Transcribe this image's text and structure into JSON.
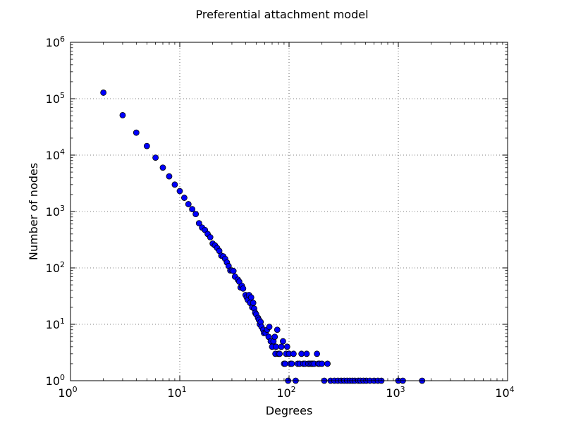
{
  "chart_data": {
    "type": "scatter",
    "title": "Preferential attachment model",
    "xlabel": "Degrees",
    "ylabel": "Number of nodes",
    "xscale": "log",
    "yscale": "log",
    "xlim": [
      1,
      10000
    ],
    "ylim": [
      1,
      1000000
    ],
    "grid": true,
    "marker_color": "#0000ff",
    "xticks": [
      {
        "value": 1,
        "base": "10",
        "exp": "0"
      },
      {
        "value": 10,
        "base": "10",
        "exp": "1"
      },
      {
        "value": 100,
        "base": "10",
        "exp": "2"
      },
      {
        "value": 1000,
        "base": "10",
        "exp": "3"
      },
      {
        "value": 10000,
        "base": "10",
        "exp": "4"
      }
    ],
    "yticks": [
      {
        "value": 1,
        "base": "10",
        "exp": "0"
      },
      {
        "value": 10,
        "base": "10",
        "exp": "1"
      },
      {
        "value": 100,
        "base": "10",
        "exp": "2"
      },
      {
        "value": 1000,
        "base": "10",
        "exp": "3"
      },
      {
        "value": 10000,
        "base": "10",
        "exp": "4"
      },
      {
        "value": 100000,
        "base": "10",
        "exp": "5"
      },
      {
        "value": 1000000,
        "base": "10",
        "exp": "6"
      }
    ],
    "points": [
      [
        2,
        128000
      ],
      [
        3,
        51000
      ],
      [
        4,
        25000
      ],
      [
        5,
        14500
      ],
      [
        6,
        9000
      ],
      [
        7,
        6000
      ],
      [
        8,
        4200
      ],
      [
        9,
        3000
      ],
      [
        10,
        2300
      ],
      [
        11,
        1750
      ],
      [
        12,
        1350
      ],
      [
        13,
        1100
      ],
      [
        14,
        900
      ],
      [
        15,
        620
      ],
      [
        16,
        520
      ],
      [
        17,
        470
      ],
      [
        18,
        400
      ],
      [
        19,
        350
      ],
      [
        20,
        270
      ],
      [
        21,
        250
      ],
      [
        22,
        225
      ],
      [
        23,
        200
      ],
      [
        24,
        165
      ],
      [
        25,
        160
      ],
      [
        26,
        145
      ],
      [
        27,
        125
      ],
      [
        28,
        108
      ],
      [
        29,
        90
      ],
      [
        30,
        90
      ],
      [
        31,
        88
      ],
      [
        32,
        70
      ],
      [
        34,
        62
      ],
      [
        35,
        57
      ],
      [
        36,
        45
      ],
      [
        37,
        48
      ],
      [
        38,
        43
      ],
      [
        40,
        33
      ],
      [
        41,
        30
      ],
      [
        42,
        27
      ],
      [
        43,
        33
      ],
      [
        44,
        24
      ],
      [
        45,
        30
      ],
      [
        46,
        20
      ],
      [
        47,
        24
      ],
      [
        48,
        19
      ],
      [
        49,
        16
      ],
      [
        50,
        15
      ],
      [
        52,
        13
      ],
      [
        53,
        12
      ],
      [
        54,
        10
      ],
      [
        55,
        11
      ],
      [
        56,
        9
      ],
      [
        58,
        8
      ],
      [
        59,
        7
      ],
      [
        61,
        7
      ],
      [
        63,
        8
      ],
      [
        65,
        6
      ],
      [
        66,
        9
      ],
      [
        68,
        5
      ],
      [
        70,
        4
      ],
      [
        72,
        5
      ],
      [
        74,
        6
      ],
      [
        75,
        3
      ],
      [
        76,
        4
      ],
      [
        78,
        8
      ],
      [
        80,
        3
      ],
      [
        82,
        3
      ],
      [
        85,
        4
      ],
      [
        88,
        5
      ],
      [
        90,
        2
      ],
      [
        92,
        2
      ],
      [
        94,
        3
      ],
      [
        96,
        4
      ],
      [
        98,
        1
      ],
      [
        100,
        3
      ],
      [
        103,
        2
      ],
      [
        106,
        2
      ],
      [
        110,
        3
      ],
      [
        115,
        1
      ],
      [
        120,
        2
      ],
      [
        125,
        2
      ],
      [
        130,
        3
      ],
      [
        135,
        2
      ],
      [
        140,
        2
      ],
      [
        145,
        3
      ],
      [
        150,
        2
      ],
      [
        155,
        2
      ],
      [
        160,
        2
      ],
      [
        165,
        2
      ],
      [
        170,
        2
      ],
      [
        180,
        3
      ],
      [
        185,
        2
      ],
      [
        190,
        2
      ],
      [
        200,
        2
      ],
      [
        210,
        1
      ],
      [
        225,
        2
      ],
      [
        240,
        1
      ],
      [
        260,
        1
      ],
      [
        280,
        1
      ],
      [
        300,
        1
      ],
      [
        320,
        1
      ],
      [
        340,
        1
      ],
      [
        360,
        1
      ],
      [
        380,
        1
      ],
      [
        400,
        1
      ],
      [
        430,
        1
      ],
      [
        450,
        1
      ],
      [
        480,
        1
      ],
      [
        510,
        1
      ],
      [
        550,
        1
      ],
      [
        600,
        1
      ],
      [
        650,
        1
      ],
      [
        700,
        1
      ],
      [
        1000,
        1
      ],
      [
        1100,
        1
      ],
      [
        1650,
        1
      ]
    ]
  }
}
